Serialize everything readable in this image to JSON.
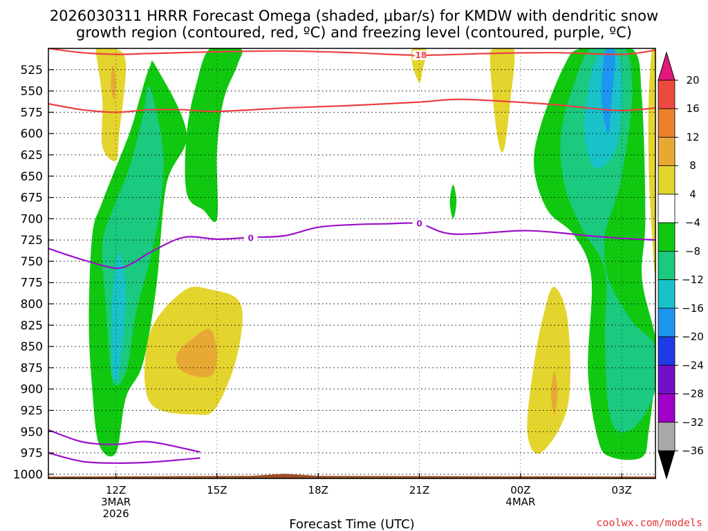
{
  "chart_data": {
    "type": "time-height cross section (filled contour)",
    "title_lines": [
      "2026030311 HRRR Forecast Omega (shaded, μbar/s) for KMDW with dendritic snow",
      "growth region (contoured, red, ºC) and freezing level (contoured, purple, ºC)"
    ],
    "xlabel": "Forecast Time (UTC)",
    "credit": "coolwx.com/models",
    "x_range_hours_since_11z": [
      -1,
      17
    ],
    "x_ticks": [
      {
        "hour": 1,
        "label": "12Z",
        "sub": [
          "3MAR",
          "2026"
        ]
      },
      {
        "hour": 4,
        "label": "15Z",
        "sub": []
      },
      {
        "hour": 7,
        "label": "18Z",
        "sub": []
      },
      {
        "hour": 10,
        "label": "21Z",
        "sub": []
      },
      {
        "hour": 13,
        "label": "00Z",
        "sub": [
          "4MAR"
        ]
      },
      {
        "hour": 16,
        "label": "03Z",
        "sub": []
      }
    ],
    "y_range_hpa": [
      500,
      1005
    ],
    "y_ticks": [
      525,
      550,
      575,
      600,
      625,
      650,
      675,
      700,
      725,
      750,
      775,
      800,
      825,
      850,
      875,
      900,
      925,
      950,
      975,
      1000
    ],
    "colorbar": {
      "labels": [
        "20",
        "16",
        "12",
        "8",
        "4",
        "−4",
        "−8",
        "−12",
        "−16",
        "−20",
        "−24",
        "−28",
        "−32",
        "−36"
      ],
      "bins": [
        {
          "range": ">20",
          "color": "#e0197a"
        },
        {
          "range": "16 to 20",
          "color": "#ec4a3f"
        },
        {
          "range": "12 to 16",
          "color": "#ed7f2a"
        },
        {
          "range": "8 to 12",
          "color": "#e8a934"
        },
        {
          "range": "4 to 8",
          "color": "#e4d42e"
        },
        {
          "range": "-4 to 4",
          "color": "#ffffff"
        },
        {
          "range": "-8 to -4",
          "color": "#11c811"
        },
        {
          "range": "-12 to -8",
          "color": "#1bc97f"
        },
        {
          "range": "-16 to -12",
          "color": "#18c2c8"
        },
        {
          "range": "-20 to -16",
          "color": "#1e96f0"
        },
        {
          "range": "-24 to -20",
          "color": "#1f3be6"
        },
        {
          "range": "-28 to -24",
          "color": "#7210c8"
        },
        {
          "range": "-32 to -28",
          "color": "#a000c8"
        },
        {
          "range": "-36 to -32",
          "color": "#a8a8a8"
        },
        {
          "range": "<-36",
          "color": "#000000"
        }
      ]
    },
    "contours": {
      "dendritic_growth_red_degC": [
        {
          "level": "-18",
          "label": "-18",
          "label_point": {
            "hour": 10,
            "hpa": 508
          },
          "points": [
            [
              -1,
              500
            ],
            [
              0,
              505
            ],
            [
              1,
              507
            ],
            [
              2,
              506
            ],
            [
              4,
              504
            ],
            [
              6,
              503
            ],
            [
              8,
              505
            ],
            [
              10,
              508
            ],
            [
              12,
              506
            ],
            [
              14,
              505
            ],
            [
              16,
              507
            ],
            [
              17,
              502
            ]
          ]
        },
        {
          "level": "-12",
          "label": "",
          "label_point": null,
          "points": [
            [
              -1,
              565
            ],
            [
              0,
              572
            ],
            [
              1,
              575
            ],
            [
              2,
              572
            ],
            [
              3,
              572
            ],
            [
              4,
              574
            ],
            [
              6,
              570
            ],
            [
              8,
              567
            ],
            [
              10,
              563
            ],
            [
              11,
              560
            ],
            [
              12,
              561
            ],
            [
              14,
              566
            ],
            [
              15,
              570
            ],
            [
              16,
              573
            ],
            [
              17,
              570
            ]
          ]
        }
      ],
      "freezing_level_purple_degC": [
        {
          "level": "0",
          "label": "0",
          "label_point": {
            "hour": 5,
            "hpa": 723
          },
          "points": [
            [
              -1,
              735
            ],
            [
              0,
              748
            ],
            [
              1,
              758
            ],
            [
              1.5,
              752
            ],
            [
              2,
              740
            ],
            [
              3,
              722
            ],
            [
              4,
              724
            ],
            [
              5,
              722
            ],
            [
              6,
              720
            ],
            [
              7,
              710
            ],
            [
              8,
              707
            ],
            [
              9,
              706
            ],
            [
              10,
              706
            ],
            [
              11,
              718
            ],
            [
              13,
              714
            ],
            [
              14,
              716
            ],
            [
              15,
              720
            ],
            [
              16,
              723
            ],
            [
              17,
              725
            ]
          ]
        },
        {
          "level": "0",
          "label": "0",
          "label_point": {
            "hour": 10,
            "hpa": 706
          },
          "points": []
        },
        {
          "level": "0",
          "label": "",
          "label_point": null,
          "points": [
            [
              -1,
              948
            ],
            [
              0,
              962
            ],
            [
              1,
              965
            ],
            [
              2,
              962
            ],
            [
              3.5,
              974
            ]
          ]
        },
        {
          "level": "0",
          "label": "",
          "label_point": null,
          "points": [
            [
              -1,
              975
            ],
            [
              0,
              985
            ],
            [
              1,
              987
            ],
            [
              2,
              986
            ],
            [
              3.5,
              981
            ]
          ]
        }
      ]
    },
    "shaded_regions": [
      {
        "bin": "4 to 8",
        "points": [
          [
            0.5,
            500
          ],
          [
            1,
            500
          ],
          [
            1.3,
            520
          ],
          [
            1.1,
            600
          ],
          [
            1.0,
            632
          ],
          [
            0.6,
            615
          ],
          [
            0.6,
            560
          ],
          [
            0.4,
            500
          ]
        ]
      },
      {
        "bin": "8 to 12",
        "points": [
          [
            0.9,
            520
          ],
          [
            1.0,
            540
          ],
          [
            0.95,
            560
          ],
          [
            0.85,
            545
          ]
        ]
      },
      {
        "bin": "-8 to -4",
        "points": [
          [
            2.2,
            522
          ],
          [
            3.1,
            600
          ],
          [
            2.5,
            660
          ],
          [
            2.2,
            780
          ],
          [
            1.8,
            870
          ],
          [
            1.3,
            910
          ],
          [
            1.0,
            975
          ],
          [
            0.5,
            965
          ],
          [
            0.3,
            900
          ],
          [
            0.2,
            820
          ],
          [
            0.3,
            720
          ],
          [
            0.6,
            680
          ],
          [
            1.4,
            600
          ],
          [
            1.7,
            560
          ],
          [
            2.0,
            522
          ]
        ]
      },
      {
        "bin": "-12 to -8",
        "points": [
          [
            2.0,
            545
          ],
          [
            2.4,
            620
          ],
          [
            2.3,
            690
          ],
          [
            2.0,
            750
          ],
          [
            1.6,
            810
          ],
          [
            1.3,
            880
          ],
          [
            0.9,
            890
          ],
          [
            0.7,
            800
          ],
          [
            0.6,
            730
          ],
          [
            0.9,
            690
          ],
          [
            1.4,
            640
          ],
          [
            1.8,
            580
          ]
        ]
      },
      {
        "bin": "-16 to -12",
        "points": [
          [
            1.1,
            740
          ],
          [
            1.3,
            790
          ],
          [
            1.1,
            880
          ],
          [
            0.9,
            880
          ],
          [
            0.9,
            790
          ]
        ]
      },
      {
        "bin": "-8 to -4",
        "points": [
          [
            3.8,
            500
          ],
          [
            4.7,
            500
          ],
          [
            4.6,
            520
          ],
          [
            4.2,
            560
          ],
          [
            4.0,
            620
          ],
          [
            4.0,
            700
          ],
          [
            3.6,
            690
          ],
          [
            3.1,
            670
          ],
          [
            3.1,
            600
          ],
          [
            3.4,
            540
          ]
        ]
      },
      {
        "bin": "4 to 8",
        "points": [
          [
            3.0,
            785
          ],
          [
            3.8,
            783
          ],
          [
            4.7,
            800
          ],
          [
            4.6,
            860
          ],
          [
            4.0,
            920
          ],
          [
            3.4,
            930
          ],
          [
            2.0,
            915
          ],
          [
            2.0,
            835
          ]
        ]
      },
      {
        "bin": "8 to 12",
        "points": [
          [
            3.3,
            840
          ],
          [
            3.8,
            830
          ],
          [
            4.0,
            860
          ],
          [
            3.8,
            885
          ],
          [
            3.0,
            880
          ],
          [
            2.8,
            860
          ]
        ]
      },
      {
        "bin": "4 to 8",
        "points": [
          [
            9.8,
            500
          ],
          [
            10.2,
            500
          ],
          [
            10.1,
            525
          ],
          [
            10,
            540
          ],
          [
            9.8,
            520
          ]
        ]
      },
      {
        "bin": "-8 to -4",
        "points": [
          [
            11.0,
            660
          ],
          [
            11.1,
            680
          ],
          [
            11.0,
            700
          ],
          [
            10.9,
            680
          ]
        ]
      },
      {
        "bin": "4 to 8",
        "points": [
          [
            12.2,
            500
          ],
          [
            12.8,
            500
          ],
          [
            12.7,
            560
          ],
          [
            12.5,
            620
          ],
          [
            12.3,
            600
          ],
          [
            12.1,
            520
          ]
        ]
      },
      {
        "bin": "4 to 8",
        "points": [
          [
            14.0,
            780
          ],
          [
            14.4,
            820
          ],
          [
            14.4,
            920
          ],
          [
            13.6,
            975
          ],
          [
            13.2,
            950
          ],
          [
            13.4,
            870
          ],
          [
            13.7,
            810
          ]
        ]
      },
      {
        "bin": "8 to 12",
        "points": [
          [
            14.0,
            880
          ],
          [
            14.1,
            905
          ],
          [
            14.0,
            930
          ],
          [
            13.9,
            905
          ]
        ]
      },
      {
        "bin": "-8 to -4",
        "points": [
          [
            14.8,
            500
          ],
          [
            16.3,
            500
          ],
          [
            16.6,
            560
          ],
          [
            16.7,
            700
          ],
          [
            16.6,
            770
          ],
          [
            17,
            840
          ],
          [
            17,
            880
          ],
          [
            16.8,
            950
          ],
          [
            16.6,
            980
          ],
          [
            15.7,
            980
          ],
          [
            15.3,
            960
          ],
          [
            15.0,
            880
          ],
          [
            15.1,
            770
          ],
          [
            14.6,
            720
          ],
          [
            13.8,
            690
          ],
          [
            13.4,
            640
          ],
          [
            13.6,
            590
          ],
          [
            14.3,
            520
          ]
        ]
      },
      {
        "bin": "-12 to -8",
        "points": [
          [
            15.1,
            500
          ],
          [
            16.1,
            500
          ],
          [
            16.3,
            560
          ],
          [
            16.0,
            650
          ],
          [
            15.8,
            680
          ],
          [
            15.5,
            720
          ],
          [
            15.6,
            770
          ],
          [
            16.3,
            820
          ],
          [
            17,
            850
          ],
          [
            17,
            900
          ],
          [
            16.5,
            940
          ],
          [
            15.9,
            950
          ],
          [
            15.6,
            920
          ],
          [
            15.5,
            840
          ],
          [
            15.5,
            760
          ],
          [
            14.8,
            710
          ],
          [
            14.3,
            660
          ],
          [
            14.2,
            600
          ],
          [
            14.6,
            540
          ]
        ]
      },
      {
        "bin": "-16 to -12",
        "points": [
          [
            15.3,
            510
          ],
          [
            15.9,
            510
          ],
          [
            16.0,
            560
          ],
          [
            15.8,
            620
          ],
          [
            15.2,
            640
          ],
          [
            14.9,
            600
          ],
          [
            15.0,
            550
          ]
        ]
      },
      {
        "bin": "-20 to -16",
        "points": [
          [
            15.5,
            505
          ],
          [
            15.8,
            505
          ],
          [
            15.7,
            560
          ],
          [
            15.6,
            600
          ],
          [
            15.4,
            560
          ]
        ]
      },
      {
        "bin": "-12 to -8",
        "points": [
          [
            15.8,
            820
          ],
          [
            16.5,
            850
          ],
          [
            16.6,
            880
          ],
          [
            16.3,
            915
          ],
          [
            15.8,
            905
          ],
          [
            15.7,
            860
          ]
        ]
      },
      {
        "bin": "4 to 8",
        "points": [
          [
            16.9,
            500
          ],
          [
            17.0,
            500
          ],
          [
            17.0,
            750
          ],
          [
            16.9,
            720
          ],
          [
            16.8,
            640
          ],
          [
            16.8,
            560
          ]
        ]
      }
    ],
    "terrain_surface_hpa_approx": 1002
  }
}
